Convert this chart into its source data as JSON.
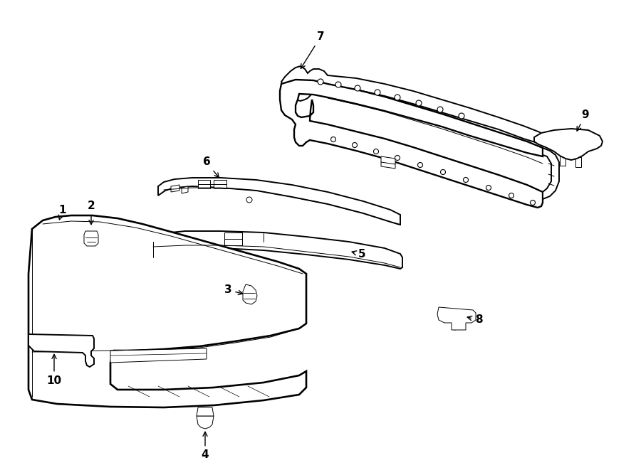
{
  "bg_color": "#ffffff",
  "line_color": "#000000",
  "lw": 1.4,
  "lw_thin": 0.7,
  "fig_w": 9.0,
  "fig_h": 6.61,
  "dpi": 100
}
